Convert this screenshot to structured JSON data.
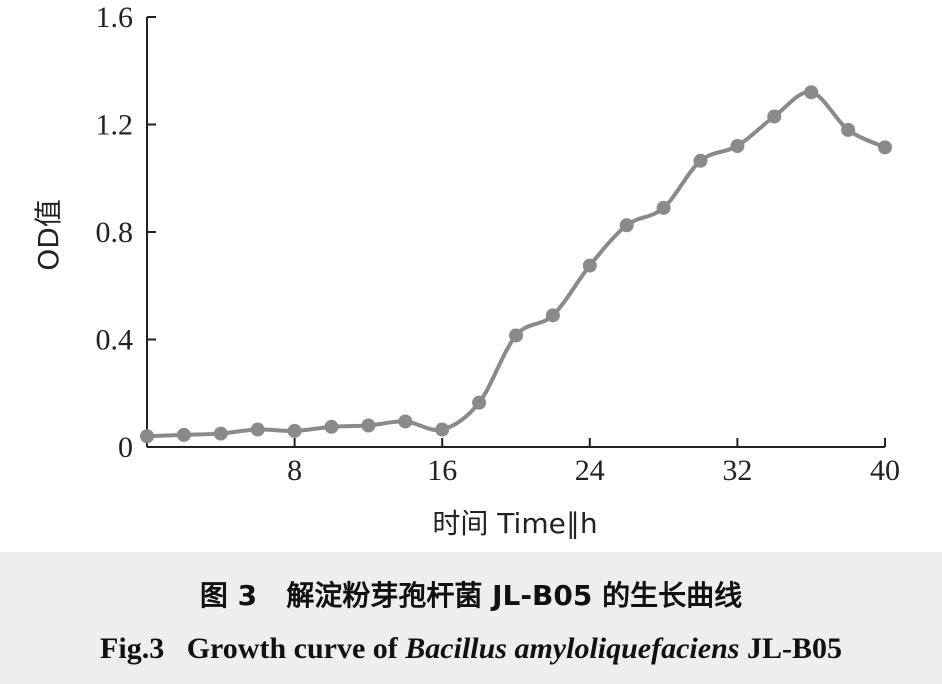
{
  "chart_data": {
    "type": "line",
    "xlabel": "时间 Time∥h",
    "ylabel": "OD值",
    "xlim": [
      0,
      40
    ],
    "ylim": [
      0,
      1.6
    ],
    "xticks": [
      8,
      16,
      24,
      32,
      40
    ],
    "xtick_labels": [
      "8",
      "16",
      "24",
      "32",
      "40"
    ],
    "yticks": [
      0,
      0.4,
      0.8,
      1.2,
      1.6
    ],
    "ytick_labels": [
      "0",
      "0.4",
      "0.8",
      "1.2",
      "1.6"
    ],
    "grid": false,
    "line_color": "#8a8a8a",
    "marker_color": "#8a8a8a",
    "series": [
      {
        "x": [
          0,
          2,
          4,
          6,
          8,
          10,
          12,
          14,
          16,
          18,
          20,
          22,
          24,
          26,
          28,
          30,
          32,
          34,
          36,
          38,
          40
        ],
        "y": [
          0.04,
          0.045,
          0.05,
          0.065,
          0.06,
          0.075,
          0.08,
          0.095,
          0.065,
          0.165,
          0.415,
          0.49,
          0.675,
          0.825,
          0.89,
          1.065,
          1.12,
          1.23,
          1.32,
          1.18,
          1.115
        ]
      }
    ]
  },
  "caption": {
    "cn_label": "图 3",
    "cn_text": "解淀粉芽孢杆菌 JL-B05 的生长曲线",
    "en_label": "Fig.3",
    "en_prefix": "Growth curve of ",
    "en_species": "Bacillus amyloliquefaciens",
    "en_suffix": " JL-B05"
  }
}
